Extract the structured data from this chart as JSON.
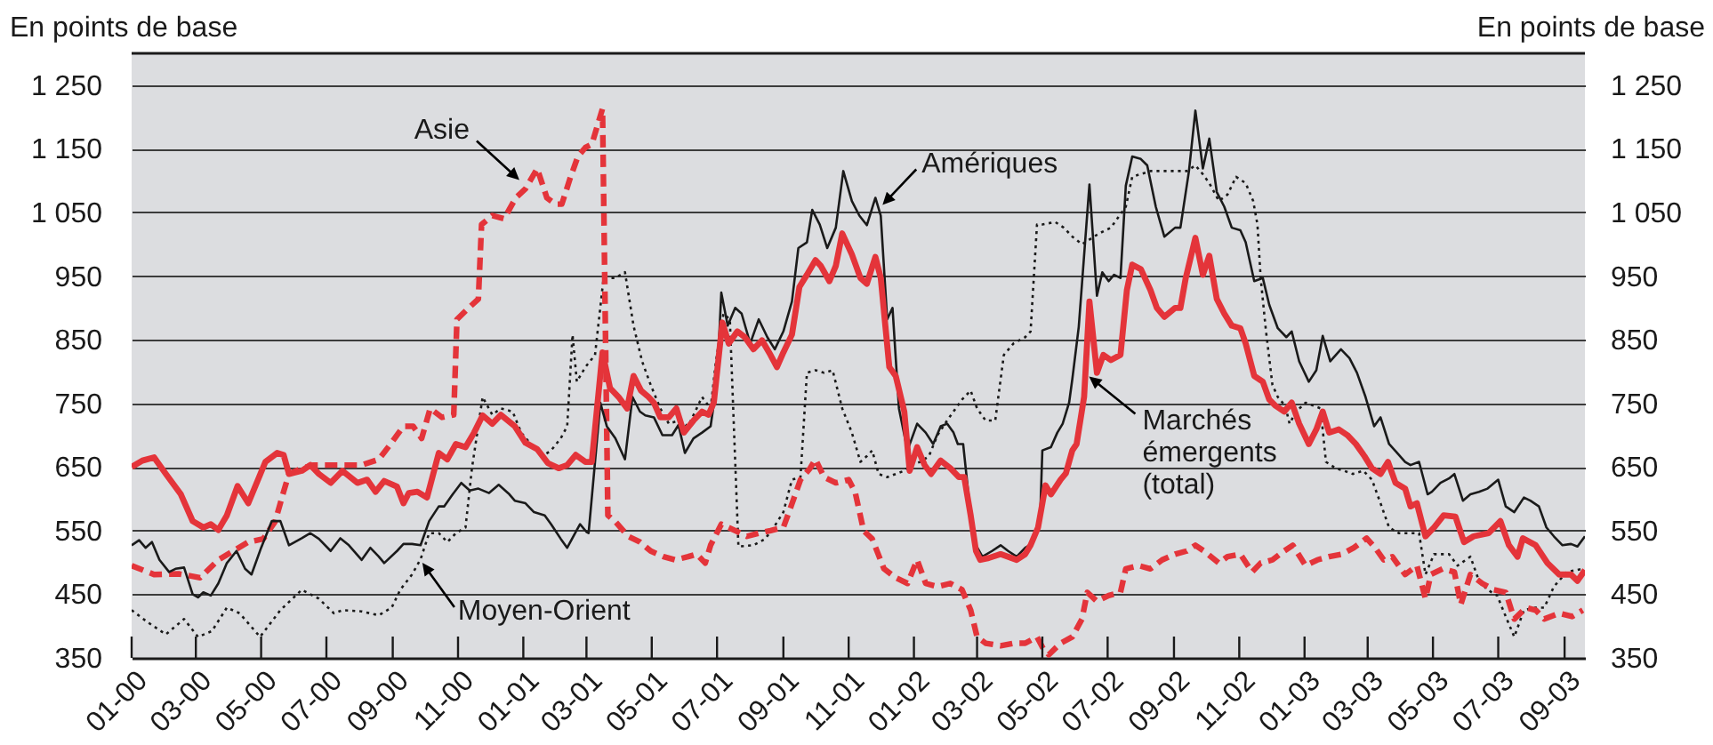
{
  "chart_data": {
    "type": "line",
    "ylabel": "En points de base",
    "y2label": "En points de base",
    "xlim": [
      "2000-01-01",
      "2003-09-20"
    ],
    "xticks": [
      {
        "value": "2000-01",
        "label": "01-00"
      },
      {
        "value": "2000-03",
        "label": "03-00"
      },
      {
        "value": "2000-05",
        "label": "05-00"
      },
      {
        "value": "2000-07",
        "label": "07-00"
      },
      {
        "value": "2000-09",
        "label": "09-00"
      },
      {
        "value": "2000-11",
        "label": "11-00"
      },
      {
        "value": "2001-01",
        "label": "01-01"
      },
      {
        "value": "2001-03",
        "label": "03-01"
      },
      {
        "value": "2001-05",
        "label": "05-01"
      },
      {
        "value": "2001-07",
        "label": "07-01"
      },
      {
        "value": "2001-09",
        "label": "09-01"
      },
      {
        "value": "2001-11",
        "label": "11-01"
      },
      {
        "value": "2002-01",
        "label": "01-02"
      },
      {
        "value": "2002-03",
        "label": "03-02"
      },
      {
        "value": "2002-05",
        "label": "05-02"
      },
      {
        "value": "2002-07",
        "label": "07-02"
      },
      {
        "value": "2002-09",
        "label": "09-02"
      },
      {
        "value": "2002-11",
        "label": "11-02"
      },
      {
        "value": "2003-01",
        "label": "01-03"
      },
      {
        "value": "2003-03",
        "label": "03-03"
      },
      {
        "value": "2003-05",
        "label": "05-03"
      },
      {
        "value": "2003-07",
        "label": "07-03"
      },
      {
        "value": "2003-09",
        "label": "09-03"
      }
    ],
    "ylim": [
      350,
      1300
    ],
    "yticks": [
      350,
      450,
      550,
      650,
      750,
      850,
      950,
      {
        "value": 1050,
        "label": "1 050"
      },
      {
        "value": 1150,
        "label": "1 150"
      },
      {
        "value": 1250,
        "label": "1 250"
      }
    ],
    "y2lim": [
      350,
      1300
    ],
    "y2ticks": [
      350,
      450,
      550,
      650,
      750,
      850,
      950,
      {
        "value": 1050,
        "label": "1 050"
      },
      {
        "value": 1150,
        "label": "1 150"
      },
      {
        "value": 1250,
        "label": "1 250"
      }
    ],
    "grid": "y",
    "series": [
      {
        "name": "Moyen-Orient",
        "color": "#1a1a1a",
        "line_style": "dotted",
        "x": [
          "2000-01-01",
          "2000-01-16",
          "2000-02-02",
          "2000-02-19",
          "2000-03-03",
          "2000-03-16",
          "2000-03-30",
          "2000-04-11",
          "2000-04-30",
          "2000-05-19",
          "2000-06-08",
          "2000-06-24",
          "2000-07-08",
          "2000-07-16",
          "2000-08-03",
          "2000-08-19",
          "2000-08-31",
          "2000-09-08",
          "2000-09-19",
          "2000-09-27",
          "2000-10-05",
          "2000-10-14",
          "2000-10-22",
          "2000-10-30",
          "2000-11-08",
          "2000-11-14",
          "2000-11-24",
          "2000-12-03",
          "2000-12-11",
          "2000-12-22",
          "2000-12-30",
          "2001-01-08",
          "2001-01-19",
          "2001-01-27",
          "2001-02-05",
          "2001-02-11",
          "2001-02-16",
          "2001-02-20",
          "2001-02-28",
          "2001-03-09",
          "2001-03-17",
          "2001-03-28",
          "2001-04-06",
          "2001-04-14",
          "2001-04-22",
          "2001-04-30",
          "2001-05-09",
          "2001-05-17",
          "2001-05-26",
          "2001-06-04",
          "2001-06-12",
          "2001-06-17",
          "2001-06-25",
          "2001-06-30",
          "2001-07-07",
          "2001-07-13",
          "2001-07-21",
          "2001-08-04",
          "2001-08-15",
          "2001-08-23",
          "2001-09-01",
          "2001-09-09",
          "2001-09-17",
          "2001-09-23",
          "2001-10-01",
          "2001-10-09",
          "2001-10-17",
          "2001-10-26",
          "2001-11-04",
          "2001-11-12",
          "2001-11-18",
          "2001-11-23",
          "2001-11-29",
          "2001-12-07",
          "2001-12-15",
          "2001-12-23",
          "2001-12-29",
          "2002-01-07",
          "2002-01-15",
          "2002-01-23",
          "2002-02-01",
          "2002-02-15",
          "2002-02-23",
          "2002-03-01",
          "2002-03-09",
          "2002-03-18",
          "2002-03-26",
          "2002-04-04",
          "2002-04-15",
          "2002-04-20",
          "2002-04-26",
          "2002-05-01",
          "2002-05-13",
          "2002-05-21",
          "2002-05-29",
          "2002-06-07",
          "2002-06-23",
          "2002-07-04",
          "2002-07-18",
          "2002-07-24",
          "2002-08-10",
          "2002-08-26",
          "2002-09-13",
          "2002-09-21",
          "2002-09-28",
          "2002-10-04",
          "2002-10-13",
          "2002-10-21",
          "2002-10-29",
          "2002-11-07",
          "2002-11-14",
          "2002-11-18",
          "2002-11-21",
          "2002-11-26",
          "2002-12-02",
          "2002-12-07",
          "2002-12-14",
          "2002-12-18",
          "2002-12-24",
          "2003-01-02",
          "2003-01-10",
          "2003-01-16",
          "2003-01-21",
          "2003-01-30",
          "2003-02-07",
          "2003-02-15",
          "2003-02-25",
          "2003-03-05",
          "2003-03-13",
          "2003-03-21",
          "2003-03-30",
          "2003-04-18",
          "2003-04-24",
          "2003-05-02",
          "2003-05-16",
          "2003-05-24",
          "2003-06-05",
          "2003-06-13",
          "2003-06-21",
          "2003-06-30",
          "2003-07-08",
          "2003-07-16",
          "2003-07-25",
          "2003-08-05",
          "2003-08-13",
          "2003-08-22",
          "2003-09-03",
          "2003-09-18"
        ],
        "values": [
          425,
          406,
          387,
          411,
          383,
          392,
          429,
          420,
          383,
          425,
          457,
          443,
          420,
          425,
          423,
          417,
          429,
          457,
          481,
          505,
          546,
          546,
          532,
          546,
          555,
          648,
          760,
          732,
          742,
          737,
          704,
          686,
          667,
          676,
          695,
          714,
          858,
          784,
          807,
          826,
          947,
          947,
          956,
          872,
          816,
          779,
          742,
          718,
          723,
          714,
          742,
          760,
          742,
          816,
          891,
          882,
          525,
          527,
          537,
          555,
          579,
          630,
          634,
          798,
          802,
          798,
          802,
          742,
          704,
          658,
          667,
          676,
          639,
          634,
          639,
          644,
          653,
          658,
          667,
          700,
          723,
          756,
          770,
          742,
          723,
          723,
          826,
          844,
          854,
          863,
          1031,
          1031,
          1035,
          1026,
          1012,
          1000,
          1017,
          1026,
          1059,
          1106,
          1115,
          1115,
          1115,
          1124,
          1110,
          1096,
          1068,
          1078,
          1106,
          1096,
          1068,
          1031,
          947,
          863,
          779,
          760,
          746,
          718,
          737,
          751,
          746,
          742,
          658,
          648,
          644,
          639,
          644,
          630,
          593,
          555,
          546,
          546,
          481,
          513,
          513,
          495,
          509,
          471,
          457,
          448,
          415,
          383,
          425,
          429,
          429,
          462,
          485,
          490
        ]
      },
      {
        "name": "Asie",
        "color": "#e4343a",
        "line_style": "dashed",
        "x": [
          "2000-01-01",
          "2000-01-22",
          "2000-02-14",
          "2000-03-05",
          "2000-03-22",
          "2000-04-05",
          "2000-04-19",
          "2000-05-03",
          "2000-05-14",
          "2000-05-22",
          "2000-05-27",
          "2000-06-08",
          "2000-06-19",
          "2000-07-17",
          "2000-08-03",
          "2000-08-19",
          "2000-08-30",
          "2000-09-11",
          "2000-09-20",
          "2000-09-28",
          "2000-10-06",
          "2000-10-17",
          "2000-10-28",
          "2000-10-31",
          "2000-11-11",
          "2000-11-20",
          "2000-11-23",
          "2000-12-03",
          "2000-12-14",
          "2000-12-25",
          "2001-01-03",
          "2001-01-14",
          "2001-01-23",
          "2001-01-31",
          "2001-02-06",
          "2001-02-14",
          "2001-02-21",
          "2001-02-28",
          "2001-03-06",
          "2001-03-16",
          "2001-03-21",
          "2001-03-28",
          "2001-04-09",
          "2001-04-20",
          "2001-04-30",
          "2001-05-12",
          "2001-05-23",
          "2001-06-04",
          "2001-06-12",
          "2001-06-20",
          "2001-06-25",
          "2001-07-05",
          "2001-07-18",
          "2001-07-29",
          "2001-08-09",
          "2001-08-20",
          "2001-09-01",
          "2001-09-09",
          "2001-09-17",
          "2001-09-26",
          "2001-10-01",
          "2001-10-09",
          "2001-10-20",
          "2001-11-01",
          "2001-11-07",
          "2001-11-15",
          "2001-11-23",
          "2001-12-04",
          "2001-12-15",
          "2001-12-26",
          "2002-01-04",
          "2002-01-12",
          "2002-01-23",
          "2002-02-04",
          "2002-02-15",
          "2002-02-23",
          "2002-03-01",
          "2002-03-09",
          "2002-03-23",
          "2002-04-04",
          "2002-04-15",
          "2002-04-26",
          "2002-05-02",
          "2002-05-07",
          "2002-05-18",
          "2002-05-29",
          "2002-06-07",
          "2002-06-12",
          "2002-06-21",
          "2002-07-02",
          "2002-07-13",
          "2002-07-18",
          "2002-07-30",
          "2002-08-10",
          "2002-08-21",
          "2002-09-02",
          "2002-09-13",
          "2002-09-21",
          "2002-09-29",
          "2002-10-13",
          "2002-10-21",
          "2002-11-02",
          "2002-11-13",
          "2002-11-21",
          "2002-12-02",
          "2002-12-13",
          "2002-12-21",
          "2003-01-02",
          "2003-01-13",
          "2003-01-24",
          "2003-02-05",
          "2003-02-16",
          "2003-02-28",
          "2003-03-08",
          "2003-03-16",
          "2003-03-24",
          "2003-04-05",
          "2003-04-16",
          "2003-04-24",
          "2003-04-29",
          "2003-05-10",
          "2003-05-21",
          "2003-05-27",
          "2003-06-05",
          "2003-06-16",
          "2003-06-27",
          "2003-07-08",
          "2003-07-16",
          "2003-07-27",
          "2003-08-05",
          "2003-08-13",
          "2003-08-27",
          "2003-09-08",
          "2003-09-18"
        ],
        "values": [
          495,
          481,
          482,
          476,
          504,
          518,
          532,
          537,
          564,
          611,
          639,
          648,
          653,
          653,
          653,
          662,
          686,
          714,
          714,
          695,
          742,
          728,
          732,
          882,
          900,
          914,
          1031,
          1045,
          1040,
          1073,
          1087,
          1119,
          1073,
          1063,
          1063,
          1105,
          1138,
          1152,
          1157,
          1213,
          574,
          564,
          541,
          532,
          518,
          509,
          504,
          509,
          513,
          499,
          527,
          560,
          550,
          541,
          546,
          550,
          555,
          592,
          630,
          648,
          662,
          634,
          625,
          630,
          611,
          550,
          537,
          490,
          476,
          467,
          504,
          467,
          462,
          467,
          457,
          425,
          383,
          373,
          369,
          373,
          373,
          383,
          364,
          355,
          373,
          383,
          411,
          453,
          439,
          448,
          453,
          490,
          495,
          490,
          504,
          513,
          518,
          527,
          518,
          499,
          509,
          513,
          485,
          499,
          504,
          518,
          527,
          495,
          504,
          509,
          513,
          523,
          538,
          523,
          504,
          509,
          481,
          495,
          443,
          481,
          490,
          485,
          434,
          481,
          467,
          457,
          453,
          411,
          429,
          425,
          411,
          420,
          415,
          425
        ]
      },
      {
        "name": "Amériques",
        "color": "#1a1a1a",
        "line_style": "solid",
        "x": [
          "2000-01-01",
          "2000-01-08",
          "2000-01-14",
          "2000-01-20",
          "2000-01-27",
          "2000-02-05",
          "2000-02-11",
          "2000-02-19",
          "2000-02-27",
          "2000-03-03",
          "2000-03-08",
          "2000-03-15",
          "2000-03-22",
          "2000-03-30",
          "2000-04-08",
          "2000-04-16",
          "2000-04-22",
          "2000-05-01",
          "2000-05-11",
          "2000-05-19",
          "2000-05-27",
          "2000-06-08",
          "2000-06-16",
          "2000-06-24",
          "2000-07-05",
          "2000-07-14",
          "2000-07-22",
          "2000-08-03",
          "2000-08-11",
          "2000-08-19",
          "2000-08-24",
          "2000-09-05",
          "2000-09-11",
          "2000-09-19",
          "2000-09-27",
          "2000-10-05",
          "2000-10-14",
          "2000-10-19",
          "2000-10-27",
          "2000-11-04",
          "2000-11-12",
          "2000-11-20",
          "2000-11-30",
          "2000-12-09",
          "2000-12-19",
          "2000-12-24",
          "2001-01-03",
          "2001-01-11",
          "2001-01-21",
          "2001-01-27",
          "2001-02-05",
          "2001-02-11",
          "2001-02-19",
          "2001-02-23",
          "2001-03-01",
          "2001-03-03",
          "2001-03-14",
          "2001-03-20",
          "2001-03-28",
          "2001-04-06",
          "2001-04-13",
          "2001-04-20",
          "2001-04-25",
          "2001-05-03",
          "2001-05-11",
          "2001-05-20",
          "2001-05-26",
          "2001-06-01",
          "2001-06-09",
          "2001-06-17",
          "2001-06-25",
          "2001-07-01",
          "2001-07-05",
          "2001-07-11",
          "2001-07-18",
          "2001-07-24",
          "2001-08-01",
          "2001-08-09",
          "2001-08-17",
          "2001-08-24",
          "2001-09-01",
          "2001-09-09",
          "2001-09-15",
          "2001-09-23",
          "2001-09-28",
          "2001-10-05",
          "2001-10-12",
          "2001-10-20",
          "2001-10-27",
          "2001-11-04",
          "2001-11-11",
          "2001-11-18",
          "2001-11-26",
          "2001-12-01",
          "2001-12-07",
          "2001-12-12",
          "2001-12-18",
          "2001-12-26",
          "2002-01-04",
          "2002-01-12",
          "2002-01-19",
          "2002-01-26",
          "2002-02-01",
          "2002-02-07",
          "2002-02-11",
          "2002-02-16",
          "2002-02-23",
          "2002-02-28",
          "2002-03-06",
          "2002-03-15",
          "2002-03-23",
          "2002-03-30",
          "2002-04-07",
          "2002-04-15",
          "2002-04-21",
          "2002-04-29",
          "2002-05-01",
          "2002-05-09",
          "2002-05-15",
          "2002-05-20",
          "2002-05-26",
          "2002-05-29",
          "2002-06-04",
          "2002-06-14",
          "2002-06-21",
          "2002-06-26",
          "2002-07-02",
          "2002-07-07",
          "2002-07-13",
          "2002-07-18",
          "2002-07-24",
          "2002-08-01",
          "2002-08-07",
          "2002-08-15",
          "2002-08-23",
          "2002-09-02",
          "2002-09-07",
          "2002-09-15",
          "2002-09-21",
          "2002-09-28",
          "2002-10-04",
          "2002-10-11",
          "2002-10-18",
          "2002-10-25",
          "2002-11-02",
          "2002-11-07",
          "2002-11-15",
          "2002-11-23",
          "2002-11-29",
          "2002-12-07",
          "2002-12-15",
          "2002-12-20",
          "2002-12-27",
          "2003-01-05",
          "2003-01-12",
          "2003-01-18",
          "2003-01-25",
          "2003-02-04",
          "2003-02-12",
          "2003-02-19",
          "2003-02-27",
          "2003-03-07",
          "2003-03-13",
          "2003-03-21",
          "2003-03-27",
          "2003-04-05",
          "2003-04-10",
          "2003-04-18",
          "2003-04-26",
          "2003-04-30",
          "2003-05-08",
          "2003-05-16",
          "2003-05-21",
          "2003-05-29",
          "2003-06-05",
          "2003-06-13",
          "2003-06-21",
          "2003-07-01",
          "2003-07-08",
          "2003-07-16",
          "2003-07-25",
          "2003-07-31",
          "2003-08-08",
          "2003-08-15",
          "2003-08-22",
          "2003-08-30",
          "2003-09-07",
          "2003-09-13",
          "2003-09-20"
        ],
        "values": [
          527,
          535,
          523,
          532,
          504,
          485,
          490,
          492,
          450,
          445,
          453,
          448,
          467,
          499,
          518,
          490,
          481,
          523,
          565,
          565,
          527,
          538,
          546,
          537,
          518,
          538,
          527,
          504,
          523,
          509,
          499,
          518,
          529,
          529,
          527,
          565,
          588,
          588,
          607,
          625,
          613,
          616,
          609,
          622,
          607,
          597,
          593,
          579,
          574,
          560,
          537,
          523,
          548,
          560,
          548,
          546,
          751,
          714,
          695,
          662,
          760,
          737,
          731,
          728,
          700,
          700,
          716,
          672,
          695,
          704,
          714,
          784,
          924,
          872,
          900,
          891,
          844,
          882,
          854,
          835,
          863,
          910,
          994,
          1003,
          1054,
          1031,
          994,
          1026,
          1115,
          1068,
          1045,
          1030,
          1073,
          1045,
          882,
          900,
          742,
          676,
          718,
          704,
          686,
          714,
          718,
          704,
          686,
          686,
          574,
          527,
          509,
          518,
          527,
          518,
          509,
          523,
          529,
          574,
          676,
          681,
          704,
          718,
          751,
          788,
          870,
          1094,
          919,
          956,
          942,
          952,
          947,
          1092,
          1138,
          1134,
          1124,
          1059,
          1012,
          1026,
          1026,
          1115,
          1210,
          1119,
          1166,
          1082,
          1059,
          1026,
          1022,
          1003,
          942,
          947,
          905,
          868,
          854,
          863,
          816,
          784,
          802,
          856,
          816,
          835,
          821,
          798,
          760,
          714,
          728,
          686,
          675,
          658,
          653,
          658,
          607,
          611,
          625,
          632,
          639,
          597,
          607,
          611,
          616,
          630,
          588,
          579,
          602,
          597,
          588,
          555,
          541,
          527,
          529,
          525,
          541
        ]
      },
      {
        "name": "Marchés émergents (total)",
        "color": "#e4343a",
        "line_style": "solid",
        "x": [
          "2000-01-01",
          "2000-01-11",
          "2000-01-22",
          "2000-02-02",
          "2000-02-16",
          "2000-02-27",
          "2000-03-08",
          "2000-03-15",
          "2000-03-22",
          "2000-03-30",
          "2000-04-09",
          "2000-04-19",
          "2000-05-05",
          "2000-05-16",
          "2000-05-22",
          "2000-05-27",
          "2000-06-08",
          "2000-06-16",
          "2000-06-24",
          "2000-07-05",
          "2000-07-16",
          "2000-07-30",
          "2000-08-08",
          "2000-08-16",
          "2000-08-24",
          "2000-09-05",
          "2000-09-11",
          "2000-09-16",
          "2000-09-24",
          "2000-10-03",
          "2000-10-14",
          "2000-10-22",
          "2000-10-30",
          "2000-11-08",
          "2000-11-16",
          "2000-11-24",
          "2000-12-03",
          "2000-12-11",
          "2000-12-24",
          "2001-01-03",
          "2001-01-14",
          "2001-01-24",
          "2001-02-03",
          "2001-02-11",
          "2001-02-19",
          "2001-02-28",
          "2001-03-06",
          "2001-03-16",
          "2001-03-23",
          "2001-03-31",
          "2001-04-08",
          "2001-04-14",
          "2001-04-21",
          "2001-04-28",
          "2001-05-03",
          "2001-05-09",
          "2001-05-17",
          "2001-05-24",
          "2001-05-31",
          "2001-06-09",
          "2001-06-17",
          "2001-06-23",
          "2001-06-28",
          "2001-07-06",
          "2001-07-12",
          "2001-07-20",
          "2001-07-27",
          "2001-08-04",
          "2001-08-12",
          "2001-08-20",
          "2001-08-26",
          "2001-09-01",
          "2001-09-09",
          "2001-09-16",
          "2001-09-23",
          "2001-10-01",
          "2001-10-06",
          "2001-10-14",
          "2001-10-20",
          "2001-10-26",
          "2001-11-04",
          "2001-11-12",
          "2001-11-18",
          "2001-11-26",
          "2001-12-01",
          "2001-12-09",
          "2001-12-15",
          "2001-12-23",
          "2001-12-28",
          "2002-01-04",
          "2002-01-11",
          "2002-01-17",
          "2002-01-26",
          "2002-02-04",
          "2002-02-12",
          "2002-02-17",
          "2002-02-23",
          "2002-02-28",
          "2002-03-04",
          "2002-03-12",
          "2002-03-23",
          "2002-03-30",
          "2002-04-07",
          "2002-04-15",
          "2002-04-20",
          "2002-04-27",
          "2002-05-04",
          "2002-05-09",
          "2002-05-18",
          "2002-05-23",
          "2002-05-29",
          "2002-06-02",
          "2002-06-09",
          "2002-06-14",
          "2002-06-21",
          "2002-06-27",
          "2002-07-04",
          "2002-07-13",
          "2002-07-19",
          "2002-07-24",
          "2002-08-01",
          "2002-08-10",
          "2002-08-16",
          "2002-08-23",
          "2002-09-02",
          "2002-09-07",
          "2002-09-12",
          "2002-09-21",
          "2002-09-28",
          "2002-10-04",
          "2002-10-11",
          "2002-10-18",
          "2002-10-25",
          "2002-11-02",
          "2002-11-07",
          "2002-11-15",
          "2002-11-23",
          "2002-11-29",
          "2002-12-05",
          "2002-12-13",
          "2002-12-20",
          "2002-12-27",
          "2003-01-05",
          "2003-01-12",
          "2003-01-18",
          "2003-01-24",
          "2003-02-02",
          "2003-02-10",
          "2003-02-18",
          "2003-02-26",
          "2003-03-05",
          "2003-03-13",
          "2003-03-20",
          "2003-03-27",
          "2003-04-05",
          "2003-04-10",
          "2003-04-16",
          "2003-04-24",
          "2003-05-02",
          "2003-05-11",
          "2003-05-22",
          "2003-05-30",
          "2003-06-08",
          "2003-06-22",
          "2003-07-03",
          "2003-07-11",
          "2003-07-19",
          "2003-07-24",
          "2003-08-05",
          "2003-08-16",
          "2003-08-27",
          "2003-09-07",
          "2003-09-13",
          "2003-09-20"
        ],
        "values": [
          650,
          660,
          665,
          639,
          607,
          565,
          555,
          560,
          551,
          574,
          620,
          593,
          658,
          672,
          669,
          639,
          644,
          653,
          639,
          625,
          644,
          625,
          630,
          611,
          628,
          619,
          593,
          609,
          611,
          602,
          672,
          662,
          686,
          681,
          704,
          731,
          718,
          732,
          714,
          688,
          678,
          656,
          648,
          653,
          669,
          658,
          658,
          830,
          774,
          760,
          742,
          793,
          770,
          760,
          751,
          728,
          728,
          742,
          704,
          723,
          737,
          732,
          751,
          877,
          844,
          863,
          854,
          835,
          849,
          826,
          807,
          830,
          858,
          933,
          952,
          975,
          966,
          942,
          966,
          1017,
          984,
          947,
          938,
          980,
          947,
          807,
          793,
          737,
          644,
          681,
          653,
          639,
          660,
          648,
          634,
          634,
          574,
          518,
          504,
          507,
          513,
          509,
          504,
          513,
          527,
          555,
          621,
          607,
          630,
          640,
          676,
          686,
          760,
          910,
          798,
          826,
          818,
          826,
          928,
          968,
          961,
          928,
          900,
          886,
          900,
          900,
          947,
          1010,
          952,
          982,
          914,
          891,
          872,
          868,
          844,
          793,
          784,
          756,
          746,
          737,
          751,
          718,
          686,
          709,
          737,
          704,
          709,
          700,
          686,
          667,
          648,
          639,
          658,
          625,
          616,
          588,
          593,
          541,
          555,
          574,
          572,
          532,
          541,
          546,
          565,
          527,
          509,
          538,
          527,
          499,
          481,
          481,
          471,
          488
        ]
      }
    ]
  }
}
